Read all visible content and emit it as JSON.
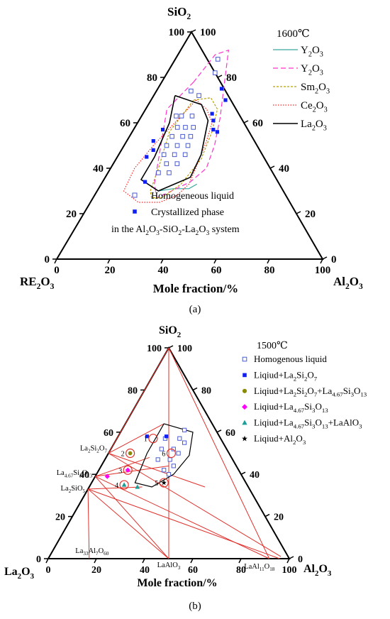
{
  "panel_labels": [
    "(a)",
    "(b)"
  ],
  "chart_data": [
    {
      "type": "scatter",
      "subtype": "ternary",
      "panel": "(a)",
      "corners": {
        "top": "SiO2",
        "left": "RE2O3",
        "right": "Al2O3"
      },
      "xlabel": "Mole fraction/%",
      "ticks": [
        0,
        20,
        40,
        60,
        80,
        100
      ],
      "legend_title": "1600℃",
      "legend_position": "top-right",
      "annotation": [
        "Homogeneous liquid",
        "Crystallized phase",
        "in the Al2O3-SiO2-La2O3 system"
      ],
      "grid": false,
      "point_coordinates": "[Al2O3 %, SiO2 %]",
      "series": [
        {
          "name": "Y2O3",
          "kind": "boundary",
          "color": "#3aa6a0",
          "dash": "solid",
          "points": [
            [
              23,
              30
            ],
            [
              28,
              31
            ],
            [
              32,
              31
            ],
            [
              34,
              31
            ],
            [
              36,
              33
            ]
          ]
        },
        {
          "name": "Y2O3",
          "kind": "boundary",
          "color": "#ff33cc",
          "dash": "long",
          "points": [
            [
              12,
              78
            ],
            [
              8,
              66
            ],
            [
              12,
              55
            ],
            [
              16,
              44
            ],
            [
              20,
              33
            ],
            [
              24,
              27
            ],
            [
              28,
              30
            ],
            [
              33,
              34
            ],
            [
              36,
              40
            ],
            [
              34,
              50
            ],
            [
              30,
              62
            ],
            [
              26,
              72
            ],
            [
              22,
              82
            ],
            [
              18,
              92
            ],
            [
              14,
              90
            ],
            [
              12,
              78
            ]
          ]
        },
        {
          "name": "Sm2O3",
          "kind": "boundary",
          "color": "#b8a000",
          "dash": "short",
          "points": [
            [
              16,
              70
            ],
            [
              22,
              71
            ],
            [
              27,
              66
            ],
            [
              30,
              56
            ],
            [
              32,
              44
            ],
            [
              30,
              33
            ],
            [
              26,
              27
            ],
            [
              22,
              27
            ],
            [
              20,
              30
            ],
            [
              18,
              40
            ],
            [
              14,
              56
            ],
            [
              16,
              70
            ]
          ]
        },
        {
          "name": "Ce2O3",
          "kind": "boundary",
          "color": "#ff2020",
          "dash": "dot",
          "points": [
            [
              17,
              70
            ],
            [
              14,
              60
            ],
            [
              11,
              50
            ],
            [
              9,
              40
            ],
            [
              10,
              30
            ],
            [
              18,
              25
            ],
            [
              26,
              25
            ],
            [
              31,
              28
            ],
            [
              33,
              33
            ],
            [
              32,
              40
            ],
            [
              30,
              52
            ],
            [
              28,
              60
            ],
            [
              23,
              66
            ],
            [
              17,
              70
            ]
          ]
        },
        {
          "name": "La2O3",
          "kind": "boundary",
          "color": "#000000",
          "dash": "solid",
          "points": [
            [
              8,
              72
            ],
            [
              20,
              68
            ],
            [
              26,
              61
            ],
            [
              31,
              46
            ],
            [
              32,
              36
            ],
            [
              23,
              30
            ],
            [
              14,
              35
            ],
            [
              14,
              45
            ],
            [
              12,
              60
            ],
            [
              8,
              72
            ]
          ]
        },
        {
          "name": "Homogeneous liquid",
          "kind": "points",
          "marker": "open-square",
          "color": "#4a5ad0",
          "points": [
            [
              16,
              88
            ],
            [
              18,
              82
            ],
            [
              13,
              74
            ],
            [
              17,
              72
            ],
            [
              13,
              63
            ],
            [
              15,
              63
            ],
            [
              19,
              63
            ],
            [
              16,
              58
            ],
            [
              19,
              58
            ],
            [
              22,
              58
            ],
            [
              16,
              54
            ],
            [
              20,
              54
            ],
            [
              23,
              54
            ],
            [
              16,
              50
            ],
            [
              20,
              50
            ],
            [
              24,
              50
            ],
            [
              17,
              46
            ],
            [
              21,
              46
            ],
            [
              25,
              46
            ],
            [
              20,
              42
            ],
            [
              24,
              42
            ],
            [
              19,
              38
            ],
            [
              23,
              38
            ]
          ]
        },
        {
          "name": "Crystallized phase",
          "kind": "points",
          "marker": "filled-square",
          "color": "#1020f0",
          "points": [
            [
              24,
              75
            ],
            [
              28,
              70
            ],
            [
              26,
              64
            ],
            [
              28,
              61
            ],
            [
              11,
              57
            ],
            [
              10,
              52
            ],
            [
              12,
              48
            ],
            [
              30,
              57
            ],
            [
              32,
              56
            ],
            [
              11,
              45
            ],
            [
              16,
              34
            ]
          ]
        }
      ]
    },
    {
      "type": "scatter",
      "subtype": "ternary",
      "panel": "(b)",
      "corners": {
        "top": "SiO2",
        "left": "La2O3",
        "right": "Al2O3"
      },
      "xlabel": "Mole fraction/%",
      "ticks": [
        0,
        20,
        40,
        60,
        80,
        100
      ],
      "legend_title": "1500℃",
      "legend_position": "top-right",
      "phases": [
        {
          "label": "La2Si2O7",
          "at": [
            0,
            50
          ]
        },
        {
          "label": "La4.67Si3O13",
          "at": [
            0,
            39
          ]
        },
        {
          "label": "La2SiO5",
          "at": [
            0,
            33
          ]
        },
        {
          "label": "La33Al7O60",
          "at": [
            17,
            0
          ]
        },
        {
          "label": "LaAlO3",
          "at": [
            50,
            0
          ]
        },
        {
          "label": "LaAl11O18",
          "at": [
            91.7,
            0
          ]
        }
      ],
      "tie_lines": [
        [
          [
            0,
            100
          ],
          [
            0,
            50
          ]
        ],
        [
          [
            0,
            100
          ],
          [
            50,
            0
          ]
        ],
        [
          [
            0,
            100
          ],
          [
            91.7,
            0
          ]
        ],
        [
          [
            0,
            50
          ],
          [
            16,
            64
          ]
        ],
        [
          [
            0,
            50
          ],
          [
            48,
            34
          ]
        ],
        [
          [
            0,
            50
          ],
          [
            96,
            1
          ]
        ],
        [
          [
            0,
            39
          ],
          [
            18,
            48
          ]
        ],
        [
          [
            0,
            39
          ],
          [
            50,
            0
          ]
        ],
        [
          [
            0,
            39
          ],
          [
            28,
            44
          ]
        ],
        [
          [
            0,
            39
          ],
          [
            91.7,
            0
          ]
        ],
        [
          [
            0,
            33
          ],
          [
            50,
            0
          ]
        ],
        [
          [
            0,
            33
          ],
          [
            17,
            0
          ]
        ],
        [
          [
            0,
            33
          ],
          [
            22,
            34
          ]
        ],
        [
          [
            0,
            33
          ],
          [
            96,
            0
          ]
        ]
      ],
      "liquid_region": [
        [
          16,
          64
        ],
        [
          30,
          60
        ],
        [
          34,
          49
        ],
        [
          32,
          40
        ],
        [
          26,
          34
        ],
        [
          18,
          36
        ],
        [
          16,
          50
        ],
        [
          16,
          64
        ]
      ],
      "series": [
        {
          "name": "Homogenous liquid",
          "marker": "open-square",
          "color": "#4a5ad0",
          "points": [
            [
              26,
              61
            ],
            [
              20,
              57
            ],
            [
              26,
              57
            ],
            [
              29,
              55
            ],
            [
              21,
              52
            ],
            [
              26,
              52
            ],
            [
              29,
              50
            ],
            [
              22,
              47
            ],
            [
              27,
              47
            ],
            [
              30,
              44
            ],
            [
              27,
              42
            ],
            [
              30,
              40
            ]
          ]
        },
        {
          "name": "Liqiud+La2Si2O7",
          "marker": "filled-square",
          "color": "#1020f0",
          "points": [
            [
              12,
              58
            ],
            [
              20,
              58
            ]
          ]
        },
        {
          "name": "Liqiud+La2Si2O7+La4.67Si3O13",
          "marker": "filled-circle",
          "color": "#8a8a00",
          "points": [
            [
              9,
              50
            ]
          ]
        },
        {
          "name": "Liqiud+La4.67Si3O13",
          "marker": "filled-diamond",
          "color": "#ff00ff",
          "points": [
            [
              5,
              39
            ],
            [
              12,
              42
            ]
          ]
        },
        {
          "name": "Liqiud+La4.67Si3O13+LaAlO3",
          "marker": "filled-triangle",
          "color": "#1aa098",
          "points": [
            [
              14,
              35
            ],
            [
              20,
              34
            ]
          ]
        },
        {
          "name": "Liqiud+Al2O3",
          "marker": "star",
          "color": "#000000",
          "points": [
            [
              30,
              36
            ]
          ]
        }
      ],
      "numbered_points": [
        {
          "label": "1",
          "at": [
            15,
            57
          ]
        },
        {
          "label": "2",
          "at": [
            9,
            50
          ]
        },
        {
          "label": "3",
          "at": [
            12,
            42
          ]
        },
        {
          "label": "4",
          "at": [
            14,
            35
          ]
        },
        {
          "label": "5",
          "at": [
            30,
            36
          ]
        },
        {
          "label": "6",
          "at": [
            26,
            50
          ]
        }
      ]
    }
  ]
}
